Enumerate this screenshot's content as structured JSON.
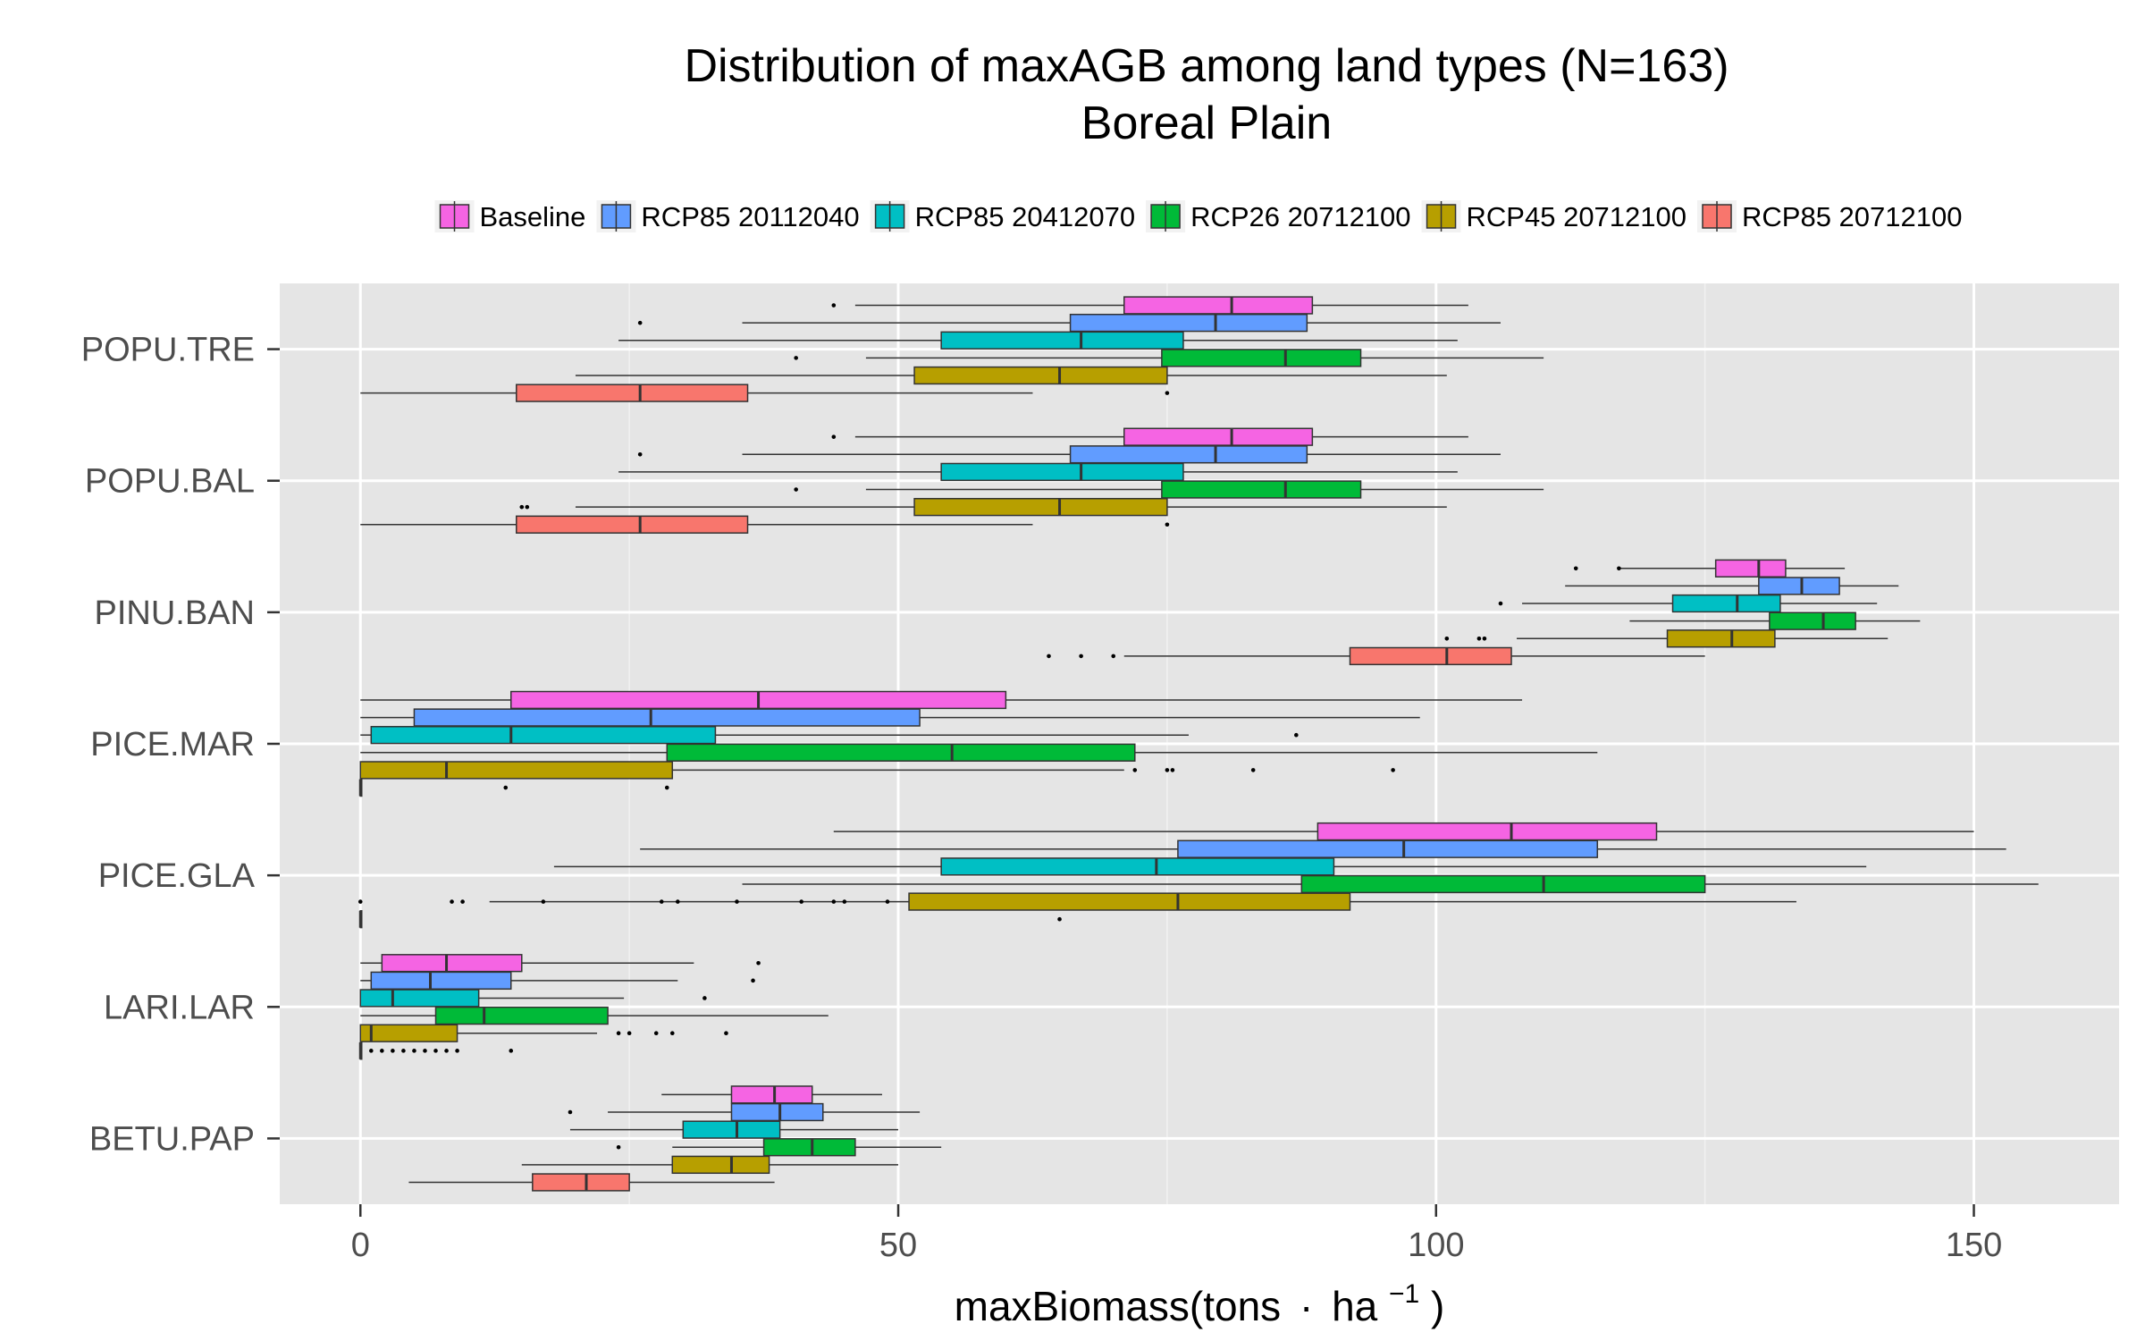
{
  "chart_data": {
    "type": "boxplot",
    "orientation": "horizontal",
    "title": "Distribution of maxAGB among land types (N=163)",
    "subtitle": "Boreal Plain",
    "xlabel_main": "maxBiomass(tons",
    "xlabel_dot": "·",
    "xlabel_unit": "ha",
    "xlabel_sup": "−1",
    "xlabel_close": ")",
    "xlim": [
      -7.5,
      163.5
    ],
    "xticks": [
      0,
      50,
      100,
      150
    ],
    "xtick_labels": [
      "0",
      "50",
      "100",
      "150"
    ],
    "grid": true,
    "legend_position": "top",
    "categories": [
      "POPU.TRE",
      "POPU.BAL",
      "PINU.BAN",
      "PICE.MAR",
      "PICE.GLA",
      "LARI.LAR",
      "BETU.PAP"
    ],
    "series": [
      {
        "name": "Baseline",
        "color": "#F564E3",
        "boxes": [
          {
            "category": "POPU.TRE",
            "whisker_lo": 46,
            "q1": 71,
            "median": 81,
            "q3": 88.5,
            "whisker_hi": 103,
            "outliers": [
              44
            ]
          },
          {
            "category": "POPU.BAL",
            "whisker_lo": 46,
            "q1": 71,
            "median": 81,
            "q3": 88.5,
            "whisker_hi": 103,
            "outliers": [
              44
            ]
          },
          {
            "category": "PINU.BAN",
            "whisker_lo": 117,
            "q1": 126,
            "median": 130,
            "q3": 132.5,
            "whisker_hi": 138,
            "outliers": [
              113,
              117
            ]
          },
          {
            "category": "PICE.MAR",
            "whisker_lo": 0,
            "q1": 14,
            "median": 37,
            "q3": 60,
            "whisker_hi": 108,
            "outliers": []
          },
          {
            "category": "PICE.GLA",
            "whisker_lo": 44,
            "q1": 89,
            "median": 107,
            "q3": 120.5,
            "whisker_hi": 150,
            "outliers": []
          },
          {
            "category": "LARI.LAR",
            "whisker_lo": 0,
            "q1": 2,
            "median": 8,
            "q3": 15,
            "whisker_hi": 31,
            "outliers": [
              37
            ]
          },
          {
            "category": "BETU.PAP",
            "whisker_lo": 28,
            "q1": 34.5,
            "median": 38.5,
            "q3": 42,
            "whisker_hi": 48.5,
            "outliers": []
          }
        ]
      },
      {
        "name": "RCP85 20112040",
        "color": "#619CFF",
        "boxes": [
          {
            "category": "POPU.TRE",
            "whisker_lo": 35.5,
            "q1": 66,
            "median": 79.5,
            "q3": 88,
            "whisker_hi": 106,
            "outliers": [
              26
            ]
          },
          {
            "category": "POPU.BAL",
            "whisker_lo": 35.5,
            "q1": 66,
            "median": 79.5,
            "q3": 88,
            "whisker_hi": 106,
            "outliers": [
              26
            ]
          },
          {
            "category": "PINU.BAN",
            "whisker_lo": 112,
            "q1": 130,
            "median": 134,
            "q3": 137.5,
            "whisker_hi": 143,
            "outliers": []
          },
          {
            "category": "PICE.MAR",
            "whisker_lo": 0,
            "q1": 5,
            "median": 27,
            "q3": 52,
            "whisker_hi": 98.5,
            "outliers": []
          },
          {
            "category": "PICE.GLA",
            "whisker_lo": 26,
            "q1": 76,
            "median": 97,
            "q3": 115,
            "whisker_hi": 153,
            "outliers": []
          },
          {
            "category": "LARI.LAR",
            "whisker_lo": 0,
            "q1": 1,
            "median": 6.5,
            "q3": 14,
            "whisker_hi": 29.5,
            "outliers": [
              36.5
            ]
          },
          {
            "category": "BETU.PAP",
            "whisker_lo": 23,
            "q1": 34.5,
            "median": 39,
            "q3": 43,
            "whisker_hi": 52,
            "outliers": [
              19.5
            ]
          }
        ]
      },
      {
        "name": "RCP85 20412070",
        "color": "#00BFC4",
        "boxes": [
          {
            "category": "POPU.TRE",
            "whisker_lo": 24,
            "q1": 54,
            "median": 67,
            "q3": 76.5,
            "whisker_hi": 102,
            "outliers": []
          },
          {
            "category": "POPU.BAL",
            "whisker_lo": 24,
            "q1": 54,
            "median": 67,
            "q3": 76.5,
            "whisker_hi": 102,
            "outliers": []
          },
          {
            "category": "PINU.BAN",
            "whisker_lo": 108,
            "q1": 122,
            "median": 128,
            "q3": 132,
            "whisker_hi": 141,
            "outliers": [
              106
            ]
          },
          {
            "category": "PICE.MAR",
            "whisker_lo": 0,
            "q1": 1,
            "median": 14,
            "q3": 33,
            "whisker_hi": 77,
            "outliers": [
              87
            ]
          },
          {
            "category": "PICE.GLA",
            "whisker_lo": 18,
            "q1": 54,
            "median": 74,
            "q3": 90.5,
            "whisker_hi": 140,
            "outliers": []
          },
          {
            "category": "LARI.LAR",
            "whisker_lo": 0,
            "q1": 0,
            "median": 3,
            "q3": 11,
            "whisker_hi": 24.5,
            "outliers": [
              32
            ]
          },
          {
            "category": "BETU.PAP",
            "whisker_lo": 19.5,
            "q1": 30,
            "median": 35,
            "q3": 39,
            "whisker_hi": 50,
            "outliers": []
          }
        ]
      },
      {
        "name": "RCP26 20712100",
        "color": "#00BA38",
        "boxes": [
          {
            "category": "POPU.TRE",
            "whisker_lo": 47,
            "q1": 74.5,
            "median": 86,
            "q3": 93,
            "whisker_hi": 110,
            "outliers": [
              40.5
            ]
          },
          {
            "category": "POPU.BAL",
            "whisker_lo": 47,
            "q1": 74.5,
            "median": 86,
            "q3": 93,
            "whisker_hi": 110,
            "outliers": [
              40.5
            ]
          },
          {
            "category": "PINU.BAN",
            "whisker_lo": 118,
            "q1": 131,
            "median": 136,
            "q3": 139,
            "whisker_hi": 145,
            "outliers": []
          },
          {
            "category": "PICE.MAR",
            "whisker_lo": 0,
            "q1": 28.5,
            "median": 55,
            "q3": 72,
            "whisker_hi": 115,
            "outliers": []
          },
          {
            "category": "PICE.GLA",
            "whisker_lo": 35.5,
            "q1": 87.5,
            "median": 110,
            "q3": 125,
            "whisker_hi": 156,
            "outliers": []
          },
          {
            "category": "LARI.LAR",
            "whisker_lo": 0,
            "q1": 7,
            "median": 11.5,
            "q3": 23,
            "whisker_hi": 43.5,
            "outliers": []
          },
          {
            "category": "BETU.PAP",
            "whisker_lo": 29,
            "q1": 37.5,
            "median": 42,
            "q3": 46,
            "whisker_hi": 54,
            "outliers": [
              24
            ]
          }
        ]
      },
      {
        "name": "RCP45 20712100",
        "color": "#B79F00",
        "boxes": [
          {
            "category": "POPU.TRE",
            "whisker_lo": 20,
            "q1": 51.5,
            "median": 65,
            "q3": 75,
            "whisker_hi": 101,
            "outliers": []
          },
          {
            "category": "POPU.BAL",
            "whisker_lo": 20,
            "q1": 51.5,
            "median": 65,
            "q3": 75,
            "whisker_hi": 101,
            "outliers": [
              15,
              15.5
            ]
          },
          {
            "category": "PINU.BAN",
            "whisker_lo": 107.5,
            "q1": 121.5,
            "median": 127.5,
            "q3": 131.5,
            "whisker_hi": 142,
            "outliers": [
              101,
              104,
              104.5
            ]
          },
          {
            "category": "PICE.MAR",
            "whisker_lo": 0,
            "q1": 0,
            "median": 8,
            "q3": 29,
            "whisker_hi": 71,
            "outliers": [
              72,
              75,
              75.5,
              83,
              96
            ]
          },
          {
            "category": "PICE.GLA",
            "whisker_lo": 12,
            "q1": 51,
            "median": 76,
            "q3": 92,
            "whisker_hi": 133.5,
            "outliers": [
              0,
              8.5,
              9.5,
              17,
              28,
              29.5,
              35,
              41,
              44,
              45,
              49
            ]
          },
          {
            "category": "LARI.LAR",
            "whisker_lo": 0,
            "q1": 0,
            "median": 1,
            "q3": 9,
            "whisker_hi": 22,
            "outliers": [
              24,
              25,
              27.5,
              29,
              34
            ]
          },
          {
            "category": "BETU.PAP",
            "whisker_lo": 15,
            "q1": 29,
            "median": 34.5,
            "q3": 38,
            "whisker_hi": 50,
            "outliers": []
          }
        ]
      },
      {
        "name": "RCP85 20712100",
        "color": "#F8766D",
        "boxes": [
          {
            "category": "POPU.TRE",
            "whisker_lo": 0,
            "q1": 14.5,
            "median": 26,
            "q3": 36,
            "whisker_hi": 62.5,
            "outliers": [
              75
            ]
          },
          {
            "category": "POPU.BAL",
            "whisker_lo": 0,
            "q1": 14.5,
            "median": 26,
            "q3": 36,
            "whisker_hi": 62.5,
            "outliers": [
              75
            ]
          },
          {
            "category": "PINU.BAN",
            "whisker_lo": 71,
            "q1": 92,
            "median": 101,
            "q3": 107,
            "whisker_hi": 125,
            "outliers": [
              64,
              67,
              70
            ]
          },
          {
            "category": "PICE.MAR",
            "whisker_lo": 0,
            "q1": 0,
            "median": 0,
            "q3": 0,
            "whisker_hi": 0,
            "outliers": [
              13.5,
              28.5
            ]
          },
          {
            "category": "PICE.GLA",
            "whisker_lo": 0,
            "q1": 0,
            "median": 0,
            "q3": 0,
            "whisker_hi": 0,
            "outliers": [
              65
            ]
          },
          {
            "category": "LARI.LAR",
            "whisker_lo": 0,
            "q1": 0,
            "median": 0,
            "q3": 0,
            "whisker_hi": 0,
            "outliers": [
              1,
              2,
              3,
              4,
              5,
              6,
              7,
              8,
              9,
              14
            ]
          },
          {
            "category": "BETU.PAP",
            "whisker_lo": 4.5,
            "q1": 16,
            "median": 21,
            "q3": 25,
            "whisker_hi": 38.5,
            "outliers": []
          }
        ]
      }
    ]
  }
}
